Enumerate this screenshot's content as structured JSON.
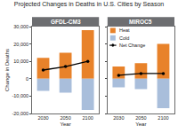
{
  "title": "Projected Changes in Deaths in U.S. Cities by Season",
  "chart_data": [
    {
      "type": "bar",
      "title": "GFDL-CM3",
      "x_label": "Year",
      "y_label": "Change in Deaths",
      "stacked": true,
      "categories": [
        "2030",
        "2050",
        "2100"
      ],
      "series": [
        {
          "name": "Heat",
          "color": "#e8822a",
          "values": [
            12000,
            15000,
            28000
          ]
        },
        {
          "name": "Cold",
          "color": "#a9bedb",
          "values": [
            -7000,
            -8000,
            -18000
          ]
        },
        {
          "name": "Net Change",
          "type": "line",
          "marker": "circle",
          "color": "#000000",
          "values": [
            5000,
            7000,
            10000
          ]
        }
      ],
      "ylim": [
        -20000,
        30000
      ],
      "yticks": [
        {
          "value": -20000,
          "label": "-20,000"
        },
        {
          "value": -10000,
          "label": "-10,000"
        },
        0,
        {
          "value": 10000,
          "label": "10,000"
        },
        {
          "value": 20000,
          "label": "20,000"
        },
        {
          "value": 30000,
          "label": "30,000"
        }
      ],
      "grid": false
    },
    {
      "type": "bar",
      "title": "MIROC5",
      "x_label": "Year",
      "stacked": true,
      "categories": [
        "2030",
        "2050",
        "2100"
      ],
      "series": [
        {
          "name": "Heat",
          "color": "#e8822a",
          "values": [
            7000,
            9000,
            20000
          ]
        },
        {
          "name": "Cold",
          "color": "#a9bedb",
          "values": [
            -5000,
            -6000,
            -17000
          ]
        },
        {
          "name": "Net Change",
          "type": "line",
          "marker": "circle",
          "color": "#000000",
          "values": [
            2000,
            3000,
            3000
          ]
        }
      ],
      "ylim": [
        -20000,
        30000
      ],
      "yticks": [
        {
          "value": -20000,
          "label": "-20,000"
        },
        {
          "value": -10000,
          "label": "-10,000"
        },
        0,
        {
          "value": 10000,
          "label": "10,000"
        },
        {
          "value": 20000,
          "label": "20,000"
        },
        {
          "value": 30000,
          "label": "30,000"
        }
      ],
      "tick_labels": "x",
      "legend": "upper left",
      "grid": false
    }
  ]
}
